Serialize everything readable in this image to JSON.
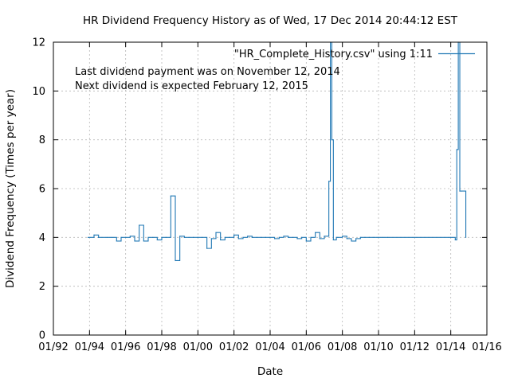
{
  "chart_data": {
    "type": "line",
    "step": true,
    "title": "HR Dividend Frequency History as of Wed, 17 Dec 2014 20:44:12 EST",
    "xlabel": "Date",
    "ylabel": "Dividend Frequency (Times per year)",
    "x_ticks": [
      "01/92",
      "01/94",
      "01/96",
      "01/98",
      "01/00",
      "01/02",
      "01/04",
      "01/06",
      "01/08",
      "01/10",
      "01/12",
      "01/14",
      "01/16"
    ],
    "xlim": [
      "01/92",
      "01/16"
    ],
    "y_ticks": [
      "0",
      "2",
      "4",
      "6",
      "8",
      "10",
      "12"
    ],
    "ylim": [
      0,
      12
    ],
    "grid": true,
    "legend_position": "top-right",
    "annotations": [
      "Last dividend payment was on November 12, 2014",
      "Next dividend is expected February 12, 2015"
    ],
    "colors": {
      "series": "#1f77b4"
    },
    "series": [
      {
        "name": "\"HR_Complete_History.csv\" using 1:11",
        "x": [
          "1993-12",
          "1994-04",
          "1994-07",
          "1995-01",
          "1995-04",
          "1995-07",
          "1995-10",
          "1996-01",
          "1996-04",
          "1996-07",
          "1996-10",
          "1997-01",
          "1997-04",
          "1997-07",
          "1997-10",
          "1998-01",
          "1998-04",
          "1998-07",
          "1998-10",
          "1999-01",
          "1999-04",
          "1999-07",
          "1999-10",
          "2000-01",
          "2000-04",
          "2000-07",
          "2000-10",
          "2001-01",
          "2001-04",
          "2001-07",
          "2001-10",
          "2002-01",
          "2002-04",
          "2002-07",
          "2002-10",
          "2003-01",
          "2003-04",
          "2003-07",
          "2003-10",
          "2004-01",
          "2004-04",
          "2004-07",
          "2004-10",
          "2005-01",
          "2005-04",
          "2005-07",
          "2005-10",
          "2006-01",
          "2006-04",
          "2006-07",
          "2006-10",
          "2007-01",
          "2007-04",
          "2007-05",
          "2007-06",
          "2007-07",
          "2007-09",
          "2007-10",
          "2008-01",
          "2008-04",
          "2008-07",
          "2008-10",
          "2009-01",
          "2009-04",
          "2009-07",
          "2009-10",
          "2010-01",
          "2010-04",
          "2010-07",
          "2014-01",
          "2014-04",
          "2014-05",
          "2014-06",
          "2014-07",
          "2014-08",
          "2014-11"
        ],
        "values": [
          4.0,
          4.1,
          4.0,
          4.0,
          4.0,
          3.85,
          4.0,
          4.0,
          4.05,
          3.85,
          4.5,
          3.85,
          4.0,
          4.0,
          3.9,
          4.0,
          4.0,
          5.7,
          3.05,
          4.05,
          4.0,
          4.0,
          4.0,
          4.0,
          4.0,
          3.55,
          3.95,
          4.2,
          3.9,
          4.0,
          4.0,
          4.1,
          3.95,
          4.0,
          4.05,
          4.0,
          4.0,
          4.0,
          4.0,
          4.0,
          3.95,
          4.0,
          4.05,
          4.0,
          4.0,
          3.95,
          4.0,
          3.85,
          4.0,
          4.2,
          3.95,
          4.05,
          6.3,
          12.0,
          8.0,
          3.9,
          4.0,
          4.0,
          4.05,
          3.95,
          3.85,
          3.95,
          4.0,
          4.0,
          4.0,
          4.0,
          4.0,
          4.0,
          4.0,
          4.0,
          3.9,
          7.6,
          12.0,
          5.9,
          5.9,
          4.0
        ]
      }
    ]
  }
}
